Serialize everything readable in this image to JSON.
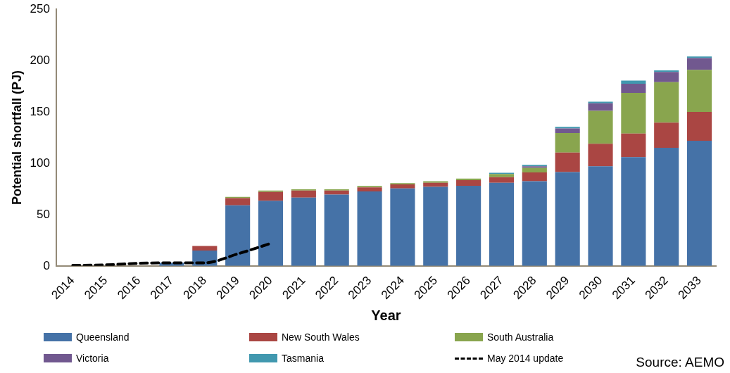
{
  "chart_data": {
    "type": "bar",
    "stacked": true,
    "xlabel": "Year",
    "ylabel": "Potential shortfall (PJ)",
    "categories": [
      "2014",
      "2015",
      "2016",
      "2017",
      "2018",
      "2019",
      "2020",
      "2021",
      "2022",
      "2023",
      "2024",
      "2025",
      "2026",
      "2027",
      "2028",
      "2029",
      "2030",
      "2031",
      "2032",
      "2033"
    ],
    "series": [
      {
        "name": "Queensland",
        "color": "#4572a7",
        "values": [
          null,
          null,
          null,
          3,
          15,
          59,
          63.5,
          66.5,
          69.5,
          72.5,
          75.5,
          77,
          78,
          81,
          82.5,
          91.5,
          97,
          106,
          115,
          122
        ]
      },
      {
        "name": "New South Wales",
        "color": "#aa4643",
        "values": [
          0,
          0,
          0,
          0,
          4.5,
          7,
          8.5,
          7,
          4,
          4,
          4,
          4,
          5.5,
          5.5,
          8.5,
          19,
          22,
          23,
          24.5,
          28
        ]
      },
      {
        "name": "South Australia",
        "color": "#89a54e",
        "values": [
          0,
          0,
          0,
          0,
          0,
          1.2,
          1.5,
          1.2,
          1.2,
          1.3,
          1.2,
          1.5,
          1.5,
          3,
          4.5,
          19,
          32,
          39.5,
          39.5,
          41
        ]
      },
      {
        "name": "Victoria",
        "color": "#71588f",
        "values": [
          0,
          0,
          0,
          0,
          0,
          0,
          0,
          0,
          0,
          0,
          0,
          0,
          0,
          null,
          1.5,
          4.5,
          7.5,
          9,
          10,
          11.5
        ]
      },
      {
        "name": "Tasmania",
        "color": "#4198af",
        "values": [
          0,
          0,
          0,
          0,
          0,
          0,
          0,
          0,
          0,
          0,
          0,
          0,
          0,
          1.3,
          1.5,
          1.5,
          1.5,
          3,
          1.5,
          1.5
        ]
      },
      {
        "name": "May 2014 update",
        "type": "line",
        "color": "#000000",
        "line_style": "dashed",
        "marker": "none",
        "values": [
          0.5,
          1,
          2.5,
          3,
          3,
          11.7,
          21.9,
          null,
          null,
          null,
          null,
          null,
          null,
          null,
          null,
          null,
          null,
          null,
          null,
          null
        ]
      }
    ],
    "ylim": [
      0,
      250
    ],
    "yticks": [
      0,
      50,
      100,
      150,
      200,
      250
    ],
    "grid": false,
    "legend": "bottom",
    "annotations": [
      "Source: AEMO"
    ]
  }
}
